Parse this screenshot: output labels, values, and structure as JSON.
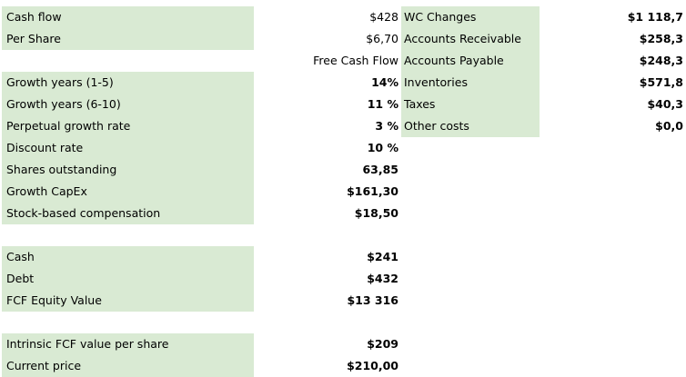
{
  "sheet": {
    "fill_color": "#d9ead3",
    "rows": [
      {
        "label": "Cash flow",
        "value": "$428",
        "wc_label": "WC Changes",
        "wc_value": "$1 118,7"
      },
      {
        "label": "Per Share",
        "value": "$6,70",
        "wc_label": "Accounts Receivable",
        "wc_value": "$258,3"
      },
      {
        "label": "",
        "value": "Free Cash Flow",
        "wc_label": "Accounts Payable",
        "wc_value": "$248,3"
      },
      {
        "label": "Growth years (1-5)",
        "value": "14%",
        "wc_label": "Inventories",
        "wc_value": "$571,8"
      },
      {
        "label": "Growth years (6-10)",
        "value": "11 %",
        "wc_label": "Taxes",
        "wc_value": "$40,3"
      },
      {
        "label": "Perpetual growth rate",
        "value": "3 %",
        "wc_label": "Other costs",
        "wc_value": "$0,0"
      },
      {
        "label": "Discount rate",
        "value": "10 %",
        "wc_label": "",
        "wc_value": ""
      },
      {
        "label": "Shares outstanding",
        "value": "63,85",
        "wc_label": "",
        "wc_value": ""
      },
      {
        "label": "Growth CapEx",
        "value": "$161,30",
        "wc_label": "",
        "wc_value": ""
      },
      {
        "label": "Stock-based compensation",
        "value": "$18,50",
        "wc_label": "",
        "wc_value": ""
      },
      {
        "label": "",
        "value": "",
        "wc_label": "",
        "wc_value": ""
      },
      {
        "label": "Cash",
        "value": "$241",
        "wc_label": "",
        "wc_value": ""
      },
      {
        "label": "Debt",
        "value": "$432",
        "wc_label": "",
        "wc_value": ""
      },
      {
        "label": "FCF Equity Value",
        "value": "$13 316",
        "wc_label": "",
        "wc_value": ""
      },
      {
        "label": "",
        "value": "",
        "wc_label": "",
        "wc_value": ""
      },
      {
        "label": "Intrinsic FCF value per share",
        "value": "$209",
        "wc_label": "",
        "wc_value": ""
      },
      {
        "label": "Current price",
        "value": "$210,00",
        "wc_label": "",
        "wc_value": ""
      }
    ]
  }
}
